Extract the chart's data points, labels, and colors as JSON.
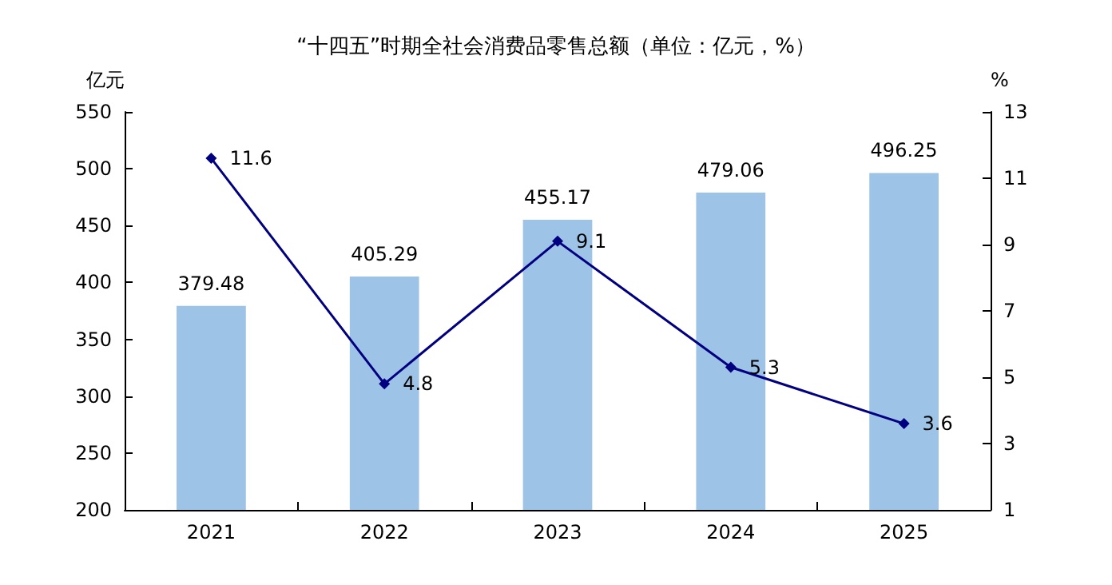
{
  "chart_data": {
    "type": "bar",
    "title": "“十四五”时期全社会消费品零售总额（单位：亿元，%）",
    "ylabel": "亿元",
    "y2label": "%",
    "categories": [
      "2021",
      "2022",
      "2023",
      "2024",
      "2025"
    ],
    "series": [
      {
        "color": "#9dc3e6",
        "values": [
          379.48,
          405.29,
          455.17,
          479.06,
          496.25
        ]
      },
      {
        "type": "line",
        "axis": "y2",
        "color": "#000080",
        "values": [
          11.6,
          4.8,
          9.1,
          5.3,
          3.6
        ]
      }
    ],
    "ylim": [
      200,
      550
    ],
    "yticks": [
      200,
      250,
      300,
      350,
      400,
      450,
      500,
      550
    ],
    "y2lim": [
      1,
      13
    ],
    "y2ticks": [
      1,
      3,
      5,
      7,
      9,
      11,
      13
    ],
    "data_labels": true,
    "marker": "diamond",
    "grid": false
  }
}
